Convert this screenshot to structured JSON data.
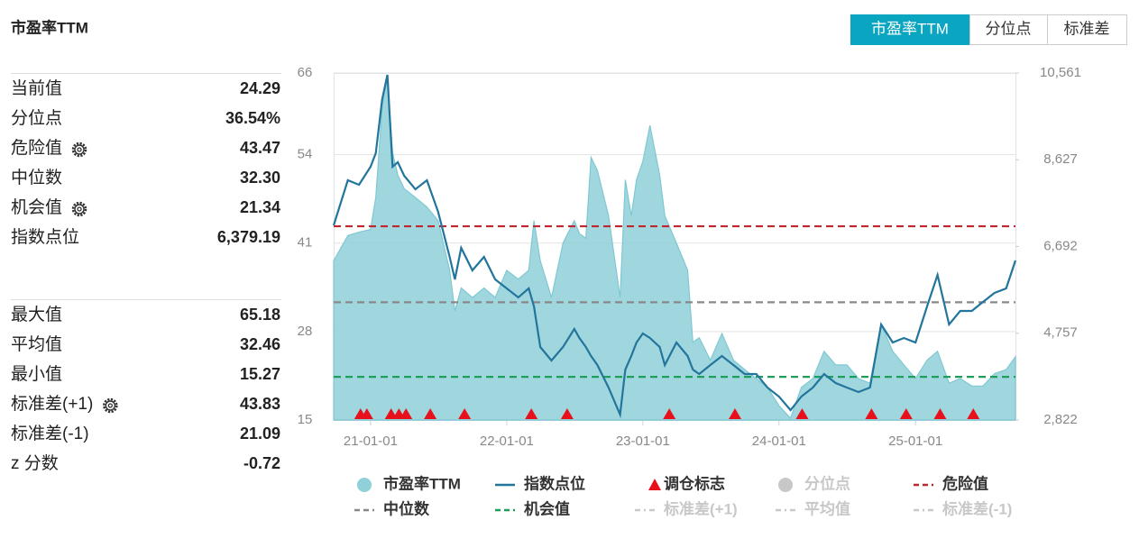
{
  "header": {
    "title": "市盈率TTM"
  },
  "tabs": [
    {
      "label": "市盈率TTM",
      "active": true
    },
    {
      "label": "分位点",
      "active": false
    },
    {
      "label": "标准差",
      "active": false
    }
  ],
  "stats": [
    [
      {
        "label": "当前值",
        "value": "24.29"
      },
      {
        "label": "分位点",
        "value": "36.54%"
      },
      {
        "label": "危险值",
        "value": "43.47",
        "gear": true
      },
      {
        "label": "中位数",
        "value": "32.30"
      },
      {
        "label": "机会值",
        "value": "21.34",
        "gear": true
      },
      {
        "label": "指数点位",
        "value": "6,379.19"
      }
    ],
    [
      {
        "label": "最大值",
        "value": "65.18"
      },
      {
        "label": "平均值",
        "value": "32.46"
      },
      {
        "label": "最小值",
        "value": "15.27"
      },
      {
        "label": "标准差(+1)",
        "value": "43.83",
        "gear": true
      },
      {
        "label": "标准差(-1)",
        "value": "21.09"
      },
      {
        "label": "z 分数",
        "value": "-0.72"
      }
    ]
  ],
  "chart_data": {
    "type": "line",
    "xlim": [
      "20-09-24",
      "25-09-26"
    ],
    "xticks": [
      "21-01-01",
      "22-01-01",
      "23-01-01",
      "24-01-01",
      "25-01-01"
    ],
    "ylim": [
      15,
      66
    ],
    "yticks": [
      15,
      28,
      41,
      54,
      66
    ],
    "y2lim": [
      2822,
      10561
    ],
    "y2ticks": [
      {
        "value": 2822,
        "label": "2,822"
      },
      {
        "value": 4757,
        "label": "4,757"
      },
      {
        "value": 6692,
        "label": "6,692"
      },
      {
        "value": 8627,
        "label": "8,627"
      },
      {
        "value": 10561,
        "label": "10,561"
      }
    ],
    "grid": true,
    "x": [
      "20-09-24",
      "20-11-01",
      "20-12-01",
      "21-01-01",
      "21-01-15",
      "21-02-01",
      "21-02-15",
      "21-03-01",
      "21-03-15",
      "21-04-01",
      "21-05-01",
      "21-06-01",
      "21-07-01",
      "21-08-01",
      "21-08-15",
      "21-09-01",
      "21-10-01",
      "21-11-01",
      "21-12-01",
      "22-01-01",
      "22-02-01",
      "22-03-01",
      "22-03-15",
      "22-04-01",
      "22-05-01",
      "22-06-01",
      "22-07-01",
      "22-07-15",
      "22-08-01",
      "22-08-15",
      "22-09-01",
      "22-10-01",
      "22-11-01",
      "22-11-15",
      "22-12-01",
      "22-12-15",
      "23-01-01",
      "23-01-20",
      "23-02-15",
      "23-03-01",
      "23-04-01",
      "23-05-01",
      "23-05-15",
      "23-06-01",
      "23-07-01",
      "23-08-01",
      "23-09-01",
      "23-10-01",
      "23-11-01",
      "23-12-01",
      "24-01-01",
      "24-02-01",
      "24-03-01",
      "24-04-01",
      "24-05-01",
      "24-06-01",
      "24-07-01",
      "24-08-01",
      "24-09-01",
      "24-10-01",
      "24-11-01",
      "24-12-01",
      "25-01-01",
      "25-02-01",
      "25-03-01",
      "25-04-01",
      "25-05-01",
      "25-06-01",
      "25-07-01",
      "25-08-01",
      "25-09-01",
      "25-09-26"
    ],
    "series": [
      {
        "name": "市盈率TTM",
        "kind": "area",
        "color": "#8fd0d9",
        "values": [
          38.4,
          42.1,
          42.6,
          43,
          47.7,
          61,
          65.18,
          54.3,
          51,
          49,
          47.7,
          46.3,
          44.3,
          37,
          31,
          34.4,
          33,
          34.4,
          33,
          37,
          35.7,
          37,
          44.3,
          38.4,
          33,
          41,
          44.3,
          42.4,
          41.7,
          53.6,
          51.7,
          45,
          33,
          50.3,
          45,
          50.3,
          53,
          58.3,
          51,
          45,
          41,
          37,
          26.4,
          27.1,
          23.8,
          27.7,
          23.8,
          22.4,
          21.1,
          19.8,
          17.1,
          15.27,
          19.8,
          21.1,
          25.1,
          23.1,
          23.1,
          21.1,
          20.4,
          29.1,
          25.1,
          23.1,
          21.1,
          23.8,
          25.1,
          20.4,
          21.1,
          20,
          20,
          21.8,
          22.4,
          24.29
        ]
      },
      {
        "name": "指数点位",
        "kind": "line",
        "axis": "y2",
        "color": "#23759c",
        "values": [
          7164,
          8169,
          8068,
          8470,
          8772,
          9978,
          10521,
          8470,
          8571,
          8269,
          7968,
          8169,
          7465,
          6460,
          5958,
          6661,
          6159,
          6460,
          5958,
          5757,
          5556,
          5757,
          5355,
          4450,
          4149,
          4450,
          4852,
          4651,
          4450,
          4249,
          4048,
          3546,
          2943,
          3948,
          4249,
          4551,
          4752,
          4651,
          4450,
          4048,
          4551,
          4249,
          3948,
          3847,
          4048,
          4249,
          4048,
          3847,
          3847,
          3546,
          3345,
          3043,
          3345,
          3546,
          3847,
          3646,
          3546,
          3445,
          3546,
          4953,
          4551,
          4651,
          4551,
          5355,
          6058,
          4953,
          5254,
          5254,
          5455,
          5656,
          5757,
          6379.19
        ]
      },
      {
        "name": "调仓标志",
        "kind": "marker",
        "color": "#e8101a",
        "x": [
          "20-12-05",
          "20-12-22",
          "21-02-25",
          "21-03-18",
          "21-04-06",
          "21-06-10",
          "21-09-10",
          "22-03-08",
          "22-06-12",
          "23-03-13",
          "23-09-05",
          "24-03-03",
          "24-09-05",
          "24-12-07",
          "25-03-08",
          "25-06-05"
        ]
      },
      {
        "name": "分位点",
        "kind": "scatter",
        "color": "#c8c8c8",
        "visible": false
      },
      {
        "name": "危险值",
        "kind": "hline",
        "color": "#c0262d",
        "value": 43.47
      },
      {
        "name": "中位数",
        "kind": "hline",
        "color": "#888888",
        "value": 32.3
      },
      {
        "name": "机会值",
        "kind": "hline",
        "color": "#1f9e5a",
        "value": 21.34
      },
      {
        "name": "标准差(+1)",
        "kind": "hline",
        "color": "#c8c8c8",
        "visible": false
      },
      {
        "name": "平均值",
        "kind": "hline",
        "color": "#c8c8c8",
        "visible": false
      },
      {
        "name": "标准差(-1)",
        "kind": "hline",
        "color": "#c8c8c8",
        "visible": false
      }
    ]
  }
}
